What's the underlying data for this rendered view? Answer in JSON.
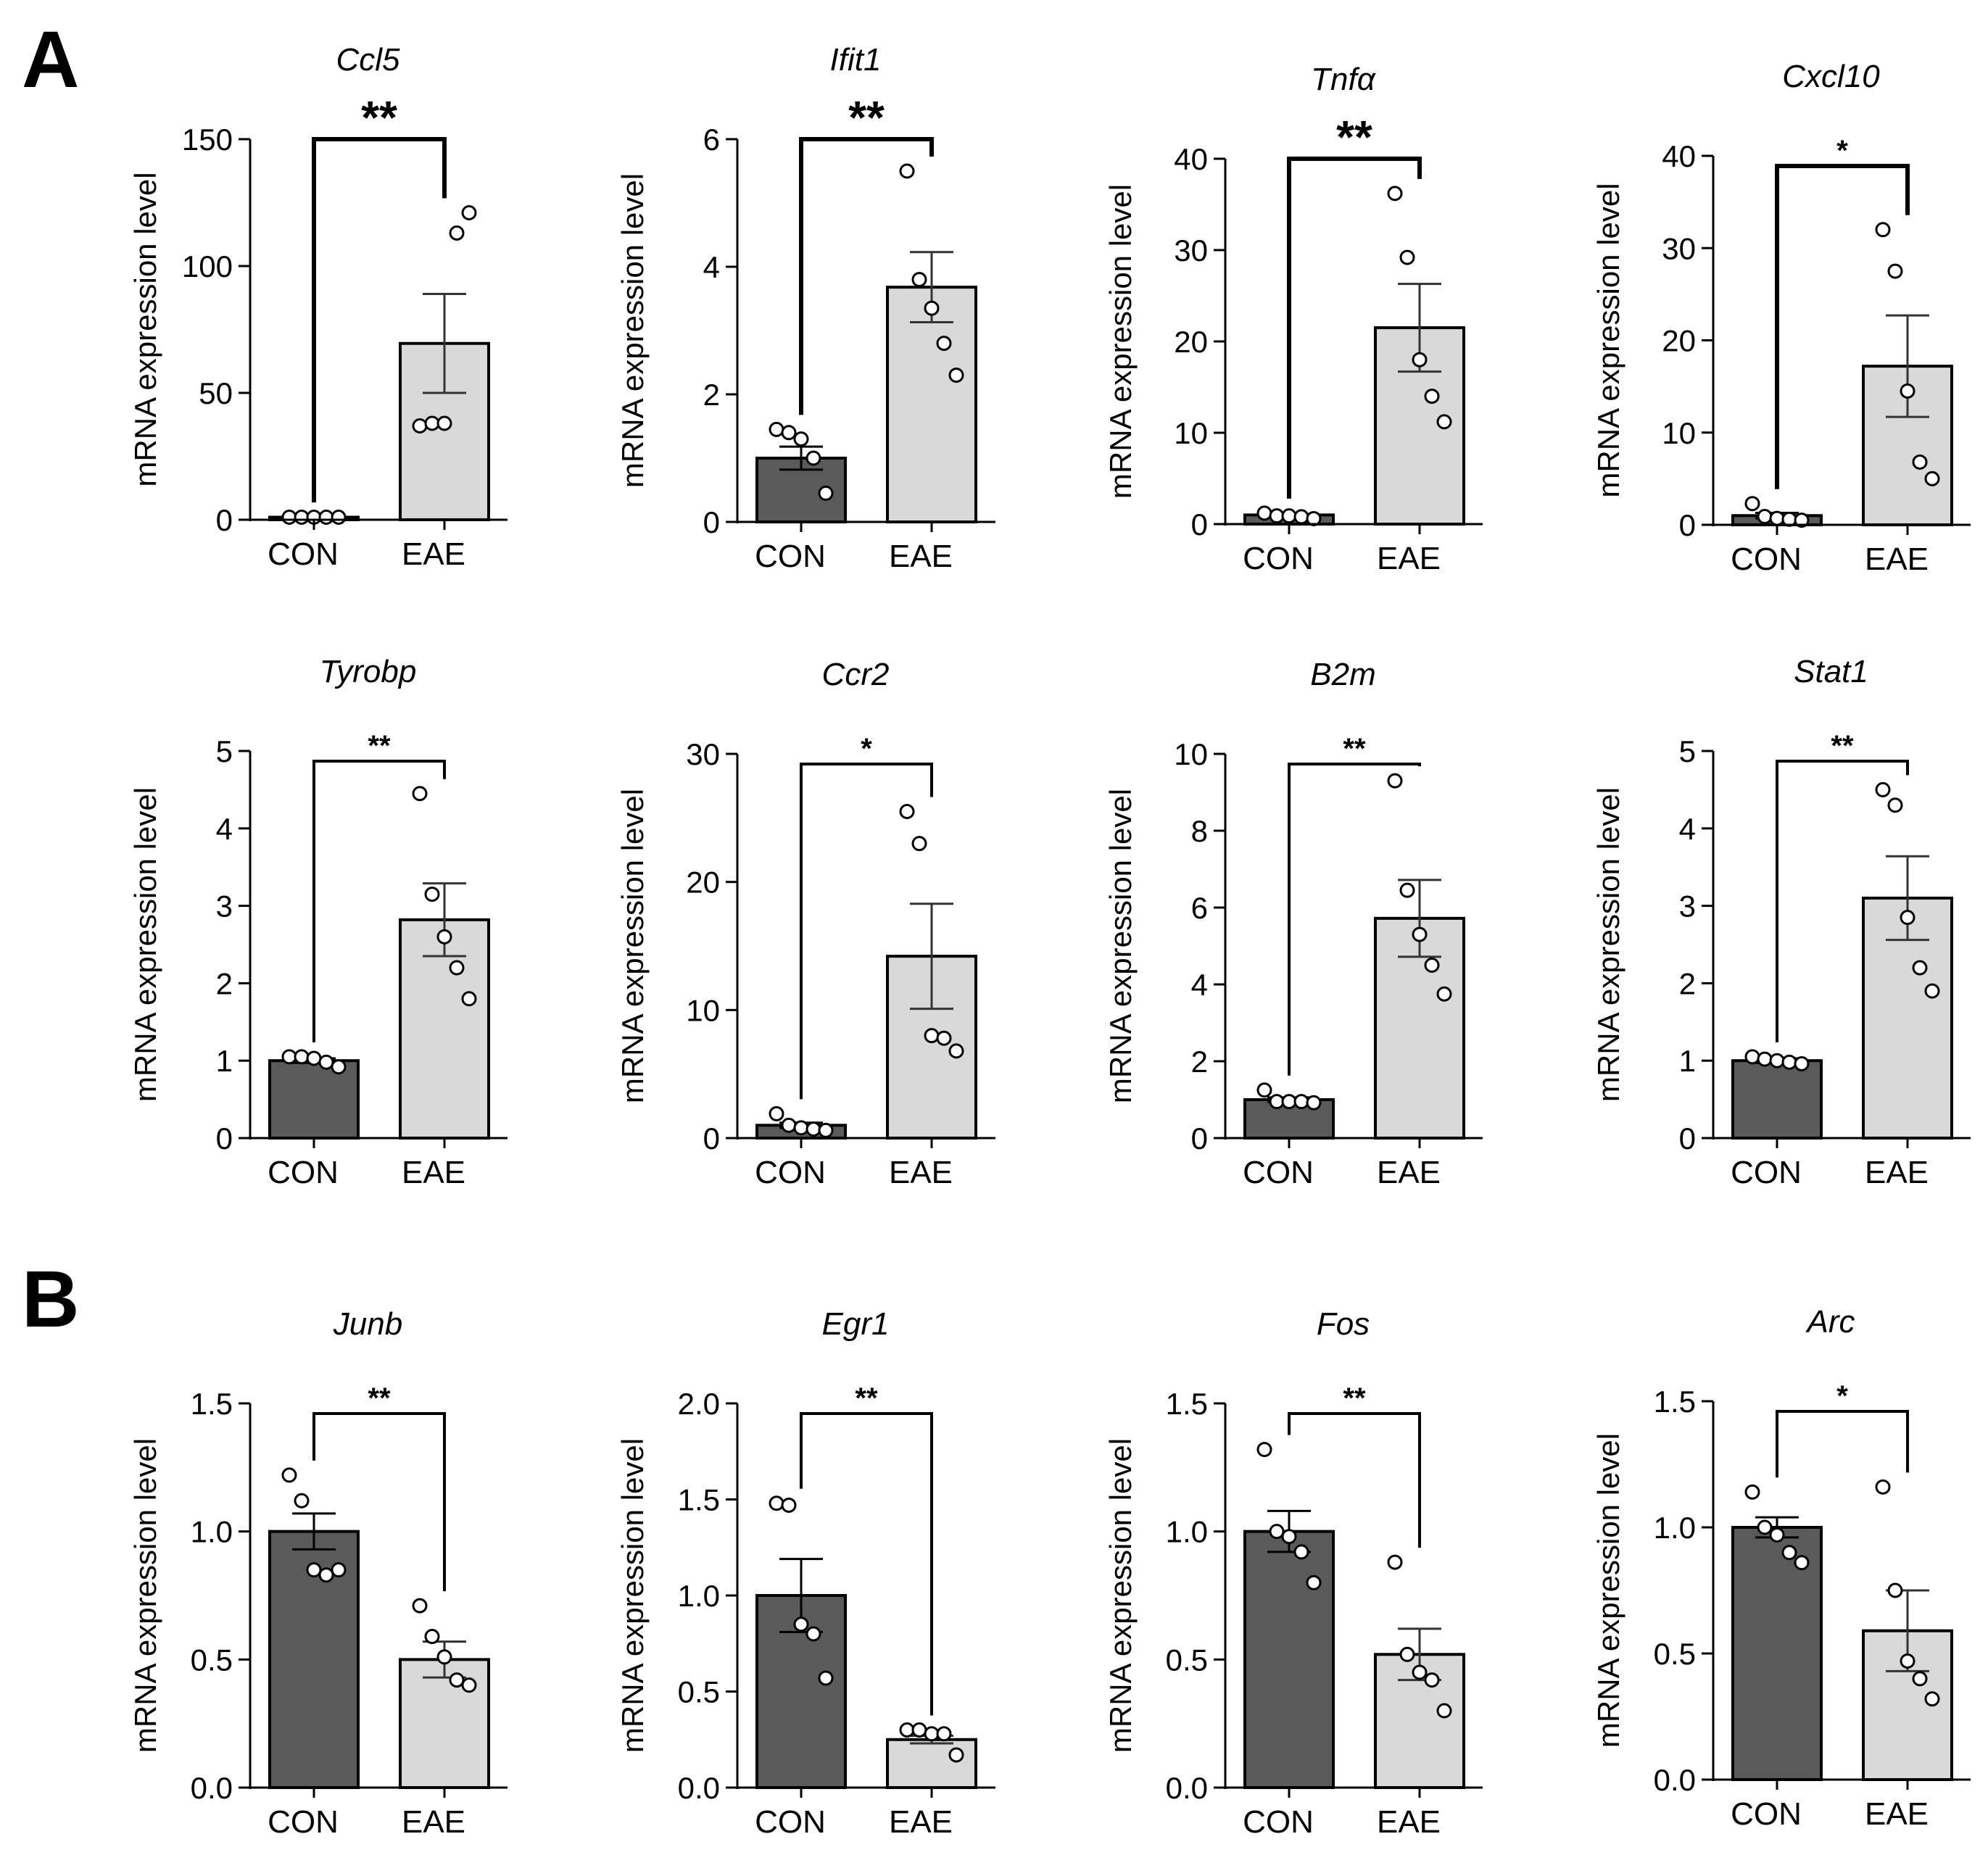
{
  "panels": [
    {
      "letter": "A"
    },
    {
      "letter": "B"
    }
  ],
  "groups": [
    "CON",
    "EAE"
  ],
  "colors": {
    "con_bar": "#5a5a5a",
    "eae_bar": "#d9d9d9",
    "axis": "#000000",
    "point_fill": "#ffffff"
  },
  "chart_data": [
    {
      "type": "bar",
      "panel": "A",
      "title": "Ccl5",
      "ylabel": "mRNA expression level",
      "categories": [
        "CON",
        "EAE"
      ],
      "ylim": [
        0,
        150
      ],
      "yticks": [
        0,
        50,
        100,
        150
      ],
      "ytick_labels": [
        "0",
        "50",
        "100",
        "150"
      ],
      "means": [
        1,
        69.5
      ],
      "sem": [
        0.1,
        19.5
      ],
      "points": [
        [
          1,
          1,
          1,
          1,
          1
        ],
        [
          37,
          38,
          38,
          113,
          121
        ]
      ],
      "significance": "**"
    },
    {
      "type": "bar",
      "panel": "A",
      "title": "Ifit1",
      "ylabel": "mRNA expression level",
      "categories": [
        "CON",
        "EAE"
      ],
      "ylim": [
        0,
        6
      ],
      "yticks": [
        0,
        2,
        4,
        6
      ],
      "ytick_labels": [
        "0",
        "2",
        "4",
        "6"
      ],
      "means": [
        1.0,
        3.68
      ],
      "sem": [
        0.18,
        0.55
      ],
      "points": [
        [
          1.45,
          1.4,
          1.3,
          1.0,
          0.45
        ],
        [
          5.5,
          3.8,
          3.35,
          2.8,
          2.3
        ]
      ],
      "significance": "**"
    },
    {
      "type": "bar",
      "panel": "A",
      "title": "Tnfα",
      "ylabel": "mRNA expression level",
      "categories": [
        "CON",
        "EAE"
      ],
      "ylim": [
        0,
        40
      ],
      "yticks": [
        0,
        10,
        20,
        30,
        40
      ],
      "ytick_labels": [
        "0",
        "10",
        "20",
        "30",
        "40"
      ],
      "means": [
        1.0,
        21.5
      ],
      "sem": [
        0.12,
        4.8
      ],
      "points": [
        [
          1.2,
          0.9,
          0.9,
          0.8,
          0.6
        ],
        [
          36.2,
          29.2,
          18.0,
          14.0,
          11.2
        ]
      ],
      "significance": "**"
    },
    {
      "type": "bar",
      "panel": "A",
      "title": "Cxcl10",
      "ylabel": "mRNA expression level",
      "categories": [
        "CON",
        "EAE"
      ],
      "ylim": [
        0,
        40
      ],
      "yticks": [
        0,
        10,
        20,
        30,
        40
      ],
      "ytick_labels": [
        "0",
        "10",
        "20",
        "30",
        "40"
      ],
      "means": [
        1.0,
        17.2
      ],
      "sem": [
        0.3,
        5.5
      ],
      "points": [
        [
          2.3,
          0.9,
          0.7,
          0.6,
          0.5
        ],
        [
          32.0,
          27.5,
          14.5,
          6.8,
          5.0
        ]
      ],
      "significance": "*"
    },
    {
      "type": "bar",
      "panel": "A",
      "title": "Tyrobp",
      "ylabel": "mRNA expression level",
      "categories": [
        "CON",
        "EAE"
      ],
      "ylim": [
        0,
        5
      ],
      "yticks": [
        0,
        1,
        2,
        3,
        4,
        5
      ],
      "ytick_labels": [
        "0",
        "1",
        "2",
        "3",
        "4",
        "5"
      ],
      "means": [
        1.0,
        2.82
      ],
      "sem": [
        0.03,
        0.47
      ],
      "points": [
        [
          1.05,
          1.05,
          1.03,
          0.98,
          0.92
        ],
        [
          4.45,
          3.15,
          2.6,
          2.2,
          1.8
        ]
      ],
      "significance": "**"
    },
    {
      "type": "bar",
      "panel": "A",
      "title": "Ccr2",
      "ylabel": "mRNA expression level",
      "categories": [
        "CON",
        "EAE"
      ],
      "ylim": [
        0,
        30
      ],
      "yticks": [
        0,
        10,
        20,
        30
      ],
      "ytick_labels": [
        "0",
        "10",
        "20",
        "30"
      ],
      "means": [
        1.0,
        14.2
      ],
      "sem": [
        0.2,
        4.1
      ],
      "points": [
        [
          1.9,
          1.0,
          0.8,
          0.7,
          0.6
        ],
        [
          25.5,
          23.0,
          8.0,
          7.8,
          6.8
        ]
      ],
      "significance": "*"
    },
    {
      "type": "bar",
      "panel": "A",
      "title": "B2m",
      "ylabel": "mRNA expression level",
      "categories": [
        "CON",
        "EAE"
      ],
      "ylim": [
        0,
        10
      ],
      "yticks": [
        0,
        2,
        4,
        6,
        8,
        10
      ],
      "ytick_labels": [
        "0",
        "2",
        "4",
        "6",
        "8",
        "10"
      ],
      "means": [
        1.0,
        5.72
      ],
      "sem": [
        0.06,
        1.0
      ],
      "points": [
        [
          1.25,
          0.95,
          0.95,
          0.95,
          0.92
        ],
        [
          9.3,
          6.45,
          5.3,
          4.5,
          3.75
        ]
      ],
      "significance": "**"
    },
    {
      "type": "bar",
      "panel": "A",
      "title": "Stat1",
      "ylabel": "mRNA expression level",
      "categories": [
        "CON",
        "EAE"
      ],
      "ylim": [
        0,
        5
      ],
      "yticks": [
        0,
        1,
        2,
        3,
        4,
        5
      ],
      "ytick_labels": [
        "0",
        "1",
        "2",
        "3",
        "4",
        "5"
      ],
      "means": [
        1.0,
        3.1
      ],
      "sem": [
        0.03,
        0.54
      ],
      "points": [
        [
          1.05,
          1.02,
          1.0,
          0.98,
          0.96
        ],
        [
          4.5,
          4.3,
          2.85,
          2.2,
          1.9
        ]
      ],
      "significance": "**"
    },
    {
      "type": "bar",
      "panel": "B",
      "title": "Junb",
      "ylabel": "mRNA expression level",
      "categories": [
        "CON",
        "EAE"
      ],
      "ylim": [
        0,
        1.5
      ],
      "yticks": [
        0,
        0.5,
        1.0,
        1.5
      ],
      "ytick_labels": [
        "0.0",
        "0.5",
        "1.0",
        "1.5"
      ],
      "means": [
        1.0,
        0.5
      ],
      "sem": [
        0.07,
        0.07
      ],
      "points": [
        [
          1.22,
          1.12,
          0.85,
          0.83,
          0.85
        ],
        [
          0.71,
          0.59,
          0.51,
          0.42,
          0.4
        ]
      ],
      "significance": "**"
    },
    {
      "type": "bar",
      "panel": "B",
      "title": "Egr1",
      "ylabel": "mRNA expression level",
      "categories": [
        "CON",
        "EAE"
      ],
      "ylim": [
        0,
        2.0
      ],
      "yticks": [
        0,
        0.5,
        1.0,
        1.5,
        2.0
      ],
      "ytick_labels": [
        "0.0",
        "0.5",
        "1.0",
        "1.5",
        "2.0"
      ],
      "means": [
        1.0,
        0.25
      ],
      "sem": [
        0.19,
        0.02
      ],
      "points": [
        [
          1.48,
          1.47,
          0.85,
          0.8,
          0.57
        ],
        [
          0.3,
          0.3,
          0.28,
          0.28,
          0.17
        ]
      ],
      "significance": "**"
    },
    {
      "type": "bar",
      "panel": "B",
      "title": "Fos",
      "ylabel": "mRNA expression level",
      "categories": [
        "CON",
        "EAE"
      ],
      "ylim": [
        0,
        1.5
      ],
      "yticks": [
        0,
        0.5,
        1.0,
        1.5
      ],
      "ytick_labels": [
        "0.0",
        "0.5",
        "1.0",
        "1.5"
      ],
      "means": [
        1.0,
        0.52
      ],
      "sem": [
        0.08,
        0.1
      ],
      "points": [
        [
          1.32,
          1.0,
          0.98,
          0.92,
          0.8
        ],
        [
          0.88,
          0.52,
          0.45,
          0.42,
          0.3
        ]
      ],
      "significance": "**"
    },
    {
      "type": "bar",
      "panel": "B",
      "title": "Arc",
      "ylabel": "mRNA expression level",
      "categories": [
        "CON",
        "EAE"
      ],
      "ylim": [
        0,
        1.5
      ],
      "yticks": [
        0,
        0.5,
        1.0,
        1.5
      ],
      "ytick_labels": [
        "0.0",
        "0.5",
        "1.0",
        "1.5"
      ],
      "means": [
        1.0,
        0.59
      ],
      "sem": [
        0.04,
        0.16
      ],
      "points": [
        [
          1.14,
          1.0,
          0.97,
          0.9,
          0.86
        ],
        [
          1.16,
          0.75,
          0.47,
          0.4,
          0.32
        ]
      ],
      "significance": "*"
    }
  ]
}
